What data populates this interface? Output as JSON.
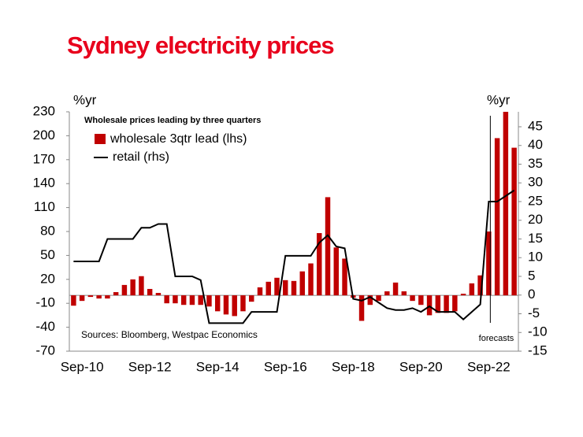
{
  "chart_data": {
    "type": "bar",
    "title": "Sydney electricity prices",
    "subtitle": "Wholesale prices leading by three quarters",
    "source": "Sources: Bloomberg, Westpac Economics",
    "ylabel": "%yr",
    "y2label": "%yr",
    "annotation": "forecasts",
    "forecast_from": 49,
    "categories": [
      null,
      "Sep-10",
      null,
      null,
      null,
      null,
      null,
      null,
      null,
      "Sep-12",
      null,
      null,
      null,
      null,
      null,
      null,
      null,
      "Sep-14",
      null,
      null,
      null,
      null,
      null,
      null,
      null,
      "Sep-16",
      null,
      null,
      null,
      null,
      null,
      null,
      null,
      "Sep-18",
      null,
      null,
      null,
      null,
      null,
      null,
      null,
      "Sep-20",
      null,
      null,
      null,
      null,
      null,
      null,
      null,
      "Sep-22",
      null,
      null,
      null
    ],
    "series": [
      {
        "name": "wholesale 3qtr lead (lhs)",
        "type": "bar",
        "color": "#c00000",
        "values": [
          -13,
          -7,
          -2,
          -4,
          -4,
          4,
          13,
          20,
          24,
          8,
          3,
          -10,
          -10,
          -12,
          -12,
          -12,
          -14,
          -20,
          -24,
          -26,
          -20,
          -8,
          10,
          17,
          22,
          19,
          18,
          30,
          40,
          78,
          123,
          60,
          46,
          -3,
          -32,
          -12,
          -7,
          5,
          16,
          5,
          -7,
          -12,
          -25,
          -22,
          -22,
          -20,
          2,
          15,
          25,
          80,
          197,
          230,
          185
        ]
      },
      {
        "name": "retail (rhs)",
        "type": "line",
        "axis": "y2",
        "color": "#000000",
        "values": [
          9,
          9,
          9,
          9,
          15,
          15,
          15,
          15,
          18,
          18,
          19,
          19,
          5,
          5,
          5,
          4,
          -7.5,
          -7.5,
          -7.5,
          -7.5,
          -7.5,
          -4.5,
          -4.5,
          -4.5,
          -4.5,
          10.5,
          10.5,
          10.5,
          10.5,
          14,
          16,
          13,
          12.5,
          -1,
          -1.5,
          -0.5,
          -2,
          -3.5,
          -4,
          -4,
          -3.5,
          -4.5,
          -3,
          -4.5,
          -4.5,
          -4.5,
          -6.5,
          -4.5,
          -2.5,
          25,
          25,
          26.5,
          28
        ]
      }
    ],
    "ylim": [
      -70,
      230
    ],
    "yticks": [
      -70,
      -40,
      -10,
      20,
      50,
      80,
      110,
      140,
      170,
      200,
      230
    ],
    "y2lim": [
      -15,
      49
    ],
    "y2ticks": [
      -15,
      -10,
      -5,
      0,
      5,
      10,
      15,
      20,
      25,
      30,
      35,
      40,
      45
    ],
    "grid": false
  }
}
